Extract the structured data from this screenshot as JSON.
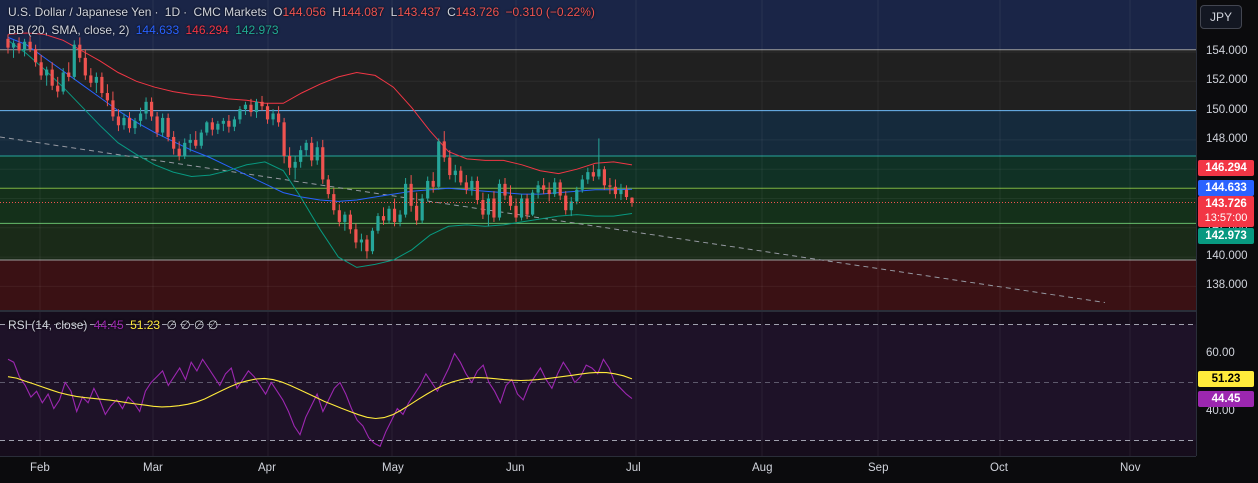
{
  "header": {
    "symbol": "U.S. Dollar / Japanese Yen",
    "interval": "1D",
    "source": "CMC Markets",
    "open_label": "O",
    "open": "144.056",
    "high_label": "H",
    "high": "144.087",
    "low_label": "L",
    "low": "143.437",
    "close_label": "C",
    "close": "143.726",
    "change": "−0.310 (−0.22%)"
  },
  "bb_indicator": {
    "label": "BB (20, SMA, close, 2)",
    "basis": "144.633",
    "upper": "146.294",
    "lower": "142.973"
  },
  "rsi_indicator": {
    "label": "RSI (14, close)",
    "rsi": "44.45",
    "rsi_ma": "51.23",
    "extra": "∅ ∅ ∅ ∅"
  },
  "currency_button": "JPY",
  "price_axis": {
    "ticks": [
      "154.000",
      "152.000",
      "150.000",
      "148.000",
      "146.000",
      "144.000",
      "142.000",
      "140.000",
      "138.000"
    ]
  },
  "price_tags": {
    "upper": "146.294",
    "middle": "144.633",
    "last": "143.726",
    "countdown": "13:57:00",
    "lower": "142.973"
  },
  "rsi_axis": {
    "ticks": [
      "60.00",
      "40.00"
    ],
    "tag_rsi": "44.45",
    "tag_ma": "51.23"
  },
  "time_axis": {
    "labels": [
      "Feb",
      "Mar",
      "Apr",
      "May",
      "Jun",
      "Jul",
      "Aug",
      "Sep",
      "Oct",
      "Nov"
    ]
  },
  "colors": {
    "up": "#26a69a",
    "down": "#ef5350",
    "bb_basis": "#2962ff",
    "bb_upper": "#f23645",
    "bb_lower": "#089981",
    "rsi": "#9c27b0",
    "rsi_ma": "#ffeb3b"
  },
  "chart_data": [
    {
      "type": "candlestick",
      "title": "U.S. Dollar / Japanese Yen · 1D · CMC Markets",
      "ylim": [
        136.8,
        155.5
      ],
      "y_ticks": [
        154,
        152,
        150,
        148,
        146,
        144,
        142,
        140,
        138
      ],
      "x_labels": [
        "Feb",
        "Mar",
        "Apr",
        "May",
        "Jun",
        "Jul",
        "Aug",
        "Sep",
        "Oct",
        "Nov"
      ],
      "horizontal_levels": [
        154.15,
        150.0,
        146.9,
        144.7,
        142.3,
        139.8
      ],
      "trendline": {
        "from": [
          "Jan",
          148.2
        ],
        "to": [
          "Oct",
          136.9
        ],
        "style": "dashed"
      },
      "ohlc": [
        [
          154.9,
          155.2,
          153.9,
          154.3
        ],
        [
          154.3,
          154.8,
          153.6,
          154.6
        ],
        [
          154.6,
          155.0,
          153.9,
          154.1
        ],
        [
          154.1,
          154.9,
          153.7,
          154.7
        ],
        [
          154.7,
          155.1,
          154.0,
          154.2
        ],
        [
          154.2,
          154.5,
          153.0,
          153.3
        ],
        [
          153.3,
          153.8,
          152.1,
          152.4
        ],
        [
          152.4,
          153.0,
          151.7,
          152.8
        ],
        [
          152.8,
          153.3,
          151.4,
          151.7
        ],
        [
          151.7,
          152.3,
          150.9,
          151.3
        ],
        [
          151.3,
          152.9,
          151.1,
          152.6
        ],
        [
          152.6,
          153.3,
          152.0,
          152.3
        ],
        [
          152.3,
          154.8,
          152.1,
          154.5
        ],
        [
          154.5,
          155.0,
          153.3,
          153.6
        ],
        [
          153.6,
          154.2,
          152.1,
          152.4
        ],
        [
          152.4,
          152.9,
          151.6,
          151.9
        ],
        [
          151.9,
          152.6,
          151.2,
          152.3
        ],
        [
          152.3,
          152.6,
          150.9,
          151.2
        ],
        [
          151.2,
          151.8,
          150.3,
          150.7
        ],
        [
          150.7,
          151.3,
          149.3,
          149.6
        ],
        [
          149.6,
          150.1,
          148.6,
          149.0
        ],
        [
          149.0,
          149.8,
          148.7,
          149.5
        ],
        [
          149.5,
          149.9,
          148.5,
          148.8
        ],
        [
          148.8,
          149.5,
          148.4,
          149.3
        ],
        [
          149.3,
          150.2,
          148.9,
          149.8
        ],
        [
          149.8,
          150.9,
          149.4,
          150.6
        ],
        [
          150.6,
          150.9,
          149.3,
          149.6
        ],
        [
          149.6,
          149.9,
          148.2,
          148.5
        ],
        [
          148.5,
          149.8,
          148.2,
          149.5
        ],
        [
          149.5,
          149.8,
          147.9,
          148.2
        ],
        [
          148.2,
          148.6,
          147.0,
          147.4
        ],
        [
          147.4,
          147.9,
          146.6,
          146.9
        ],
        [
          146.9,
          148.1,
          146.7,
          147.8
        ],
        [
          147.8,
          148.4,
          147.2,
          148.0
        ],
        [
          148.0,
          148.6,
          147.4,
          147.6
        ],
        [
          147.6,
          148.7,
          147.4,
          148.5
        ],
        [
          148.5,
          149.3,
          148.3,
          149.2
        ],
        [
          149.2,
          149.5,
          148.3,
          148.7
        ],
        [
          148.7,
          149.3,
          148.4,
          149.1
        ],
        [
          149.1,
          149.5,
          148.6,
          149.3
        ],
        [
          149.3,
          149.7,
          148.5,
          148.9
        ],
        [
          148.9,
          149.6,
          148.6,
          149.4
        ],
        [
          149.4,
          150.3,
          149.1,
          150.1
        ],
        [
          150.1,
          150.6,
          149.7,
          150.4
        ],
        [
          150.4,
          150.8,
          149.6,
          149.9
        ],
        [
          149.9,
          150.8,
          149.5,
          150.6
        ],
        [
          150.6,
          151.0,
          150.0,
          150.3
        ],
        [
          150.3,
          150.5,
          149.1,
          149.4
        ],
        [
          149.4,
          150.1,
          149.0,
          149.8
        ],
        [
          149.8,
          150.3,
          148.9,
          149.2
        ],
        [
          149.2,
          149.5,
          146.4,
          146.9
        ],
        [
          146.9,
          147.5,
          145.6,
          146.1
        ],
        [
          146.1,
          146.9,
          145.3,
          146.5
        ],
        [
          146.5,
          147.6,
          146.1,
          147.3
        ],
        [
          147.3,
          148.0,
          146.9,
          147.8
        ],
        [
          147.8,
          148.2,
          146.2,
          146.6
        ],
        [
          146.6,
          147.9,
          146.3,
          147.5
        ],
        [
          147.5,
          148.0,
          145.0,
          145.3
        ],
        [
          145.3,
          145.6,
          144.0,
          144.3
        ],
        [
          144.3,
          144.7,
          142.9,
          143.2
        ],
        [
          143.2,
          143.6,
          142.1,
          142.4
        ],
        [
          142.4,
          143.1,
          141.8,
          142.9
        ],
        [
          142.9,
          143.2,
          141.6,
          141.9
        ],
        [
          141.9,
          142.3,
          140.6,
          141.0
        ],
        [
          141.0,
          141.6,
          140.4,
          141.2
        ],
        [
          141.2,
          141.5,
          139.9,
          140.4
        ],
        [
          140.4,
          142.0,
          140.2,
          141.8
        ],
        [
          141.8,
          143.0,
          141.6,
          142.8
        ],
        [
          142.8,
          143.4,
          142.2,
          142.5
        ],
        [
          142.5,
          143.5,
          142.3,
          143.3
        ],
        [
          143.3,
          144.0,
          142.1,
          142.4
        ],
        [
          142.4,
          143.2,
          142.1,
          142.9
        ],
        [
          142.9,
          145.4,
          142.7,
          145.0
        ],
        [
          145.0,
          145.6,
          143.1,
          143.5
        ],
        [
          143.5,
          144.4,
          142.2,
          142.5
        ],
        [
          142.5,
          144.3,
          142.3,
          144.0
        ],
        [
          144.0,
          145.5,
          143.8,
          145.2
        ],
        [
          145.2,
          145.8,
          144.4,
          144.8
        ],
        [
          144.8,
          148.1,
          144.6,
          147.9
        ],
        [
          147.9,
          148.6,
          146.5,
          146.8
        ],
        [
          146.8,
          147.3,
          145.3,
          145.6
        ],
        [
          145.6,
          146.3,
          145.1,
          145.9
        ],
        [
          145.9,
          146.2,
          144.9,
          145.1
        ],
        [
          145.1,
          145.6,
          144.3,
          144.6
        ],
        [
          144.6,
          145.5,
          144.2,
          145.2
        ],
        [
          145.2,
          145.5,
          143.6,
          143.9
        ],
        [
          143.9,
          144.4,
          142.6,
          142.9
        ],
        [
          142.9,
          144.3,
          142.1,
          144.0
        ],
        [
          144.0,
          144.5,
          142.4,
          142.7
        ],
        [
          142.7,
          145.3,
          142.5,
          145.0
        ],
        [
          145.0,
          145.4,
          143.9,
          144.2
        ],
        [
          144.2,
          144.9,
          143.2,
          143.5
        ],
        [
          143.5,
          144.0,
          142.4,
          142.7
        ],
        [
          142.7,
          144.3,
          142.5,
          144.0
        ],
        [
          144.0,
          144.3,
          142.6,
          142.9
        ],
        [
          142.9,
          144.6,
          142.8,
          144.4
        ],
        [
          144.4,
          145.2,
          144.0,
          144.9
        ],
        [
          144.9,
          145.4,
          144.3,
          144.6
        ],
        [
          144.6,
          145.1,
          143.8,
          144.3
        ],
        [
          144.3,
          145.4,
          144.1,
          145.1
        ],
        [
          145.1,
          145.3,
          143.9,
          144.2
        ],
        [
          144.2,
          144.5,
          142.9,
          143.2
        ],
        [
          143.2,
          144.1,
          142.8,
          143.8
        ],
        [
          143.8,
          144.8,
          143.6,
          144.6
        ],
        [
          144.6,
          145.6,
          144.4,
          145.3
        ],
        [
          145.3,
          146.1,
          145.0,
          145.8
        ],
        [
          145.8,
          146.3,
          145.2,
          145.5
        ],
        [
          145.5,
          148.1,
          145.3,
          146.0
        ],
        [
          146.0,
          146.2,
          144.6,
          144.9
        ],
        [
          144.9,
          145.4,
          144.3,
          144.8
        ],
        [
          144.8,
          145.3,
          144.0,
          144.3
        ],
        [
          144.3,
          145.0,
          143.9,
          144.6
        ],
        [
          144.6,
          144.9,
          143.9,
          144.1
        ],
        [
          144.056,
          144.087,
          143.437,
          143.726
        ]
      ],
      "bb_basis": [
        155.0,
        154.5,
        153.6,
        152.7,
        151.8,
        150.9,
        150.0,
        149.2,
        148.5,
        147.9,
        147.3,
        146.8,
        146.2,
        145.6,
        145.0,
        144.4,
        144.1,
        143.9,
        143.8,
        143.9,
        144.1,
        144.3,
        144.5,
        144.6,
        144.7,
        144.6,
        144.5,
        144.4,
        144.3,
        144.3,
        144.4,
        144.5,
        144.6,
        144.6,
        144.63
      ],
      "bb_upper": [
        155.2,
        155.3,
        155.2,
        154.8,
        154.1,
        153.4,
        152.6,
        152.0,
        151.6,
        151.3,
        151.1,
        151.0,
        150.8,
        150.7,
        150.5,
        150.5,
        151.2,
        151.8,
        152.3,
        152.6,
        152.4,
        151.6,
        150.2,
        148.6,
        147.2,
        146.7,
        146.6,
        146.6,
        146.3,
        145.9,
        145.7,
        146.0,
        146.4,
        146.5,
        146.294
      ],
      "bb_lower": [
        154.8,
        153.9,
        152.8,
        151.6,
        150.3,
        149.0,
        147.8,
        147.0,
        146.3,
        145.8,
        145.5,
        145.6,
        145.9,
        146.3,
        146.5,
        145.9,
        144.0,
        141.9,
        140.0,
        139.3,
        139.5,
        139.8,
        140.5,
        141.5,
        142.1,
        142.2,
        142.1,
        142.2,
        142.4,
        142.6,
        142.8,
        142.9,
        142.8,
        142.8,
        142.973
      ]
    },
    {
      "type": "line",
      "title": "RSI (14, close)",
      "ylim": [
        20,
        80
      ],
      "y_ticks": [
        60,
        40
      ],
      "bands": [
        70,
        50,
        30
      ],
      "series": [
        {
          "name": "RSI",
          "values": [
            58,
            57,
            52,
            49,
            45,
            47,
            43,
            46,
            41,
            44,
            50,
            47,
            40,
            45,
            43,
            48,
            44,
            39,
            42,
            44,
            41,
            45,
            43,
            40,
            47,
            50,
            52,
            54,
            49,
            52,
            55,
            51,
            57,
            54,
            58,
            55,
            52,
            49,
            53,
            55,
            48,
            51,
            54,
            52,
            49,
            46,
            50,
            47,
            44,
            40,
            35,
            32,
            38,
            42,
            46,
            40,
            44,
            48,
            50,
            46,
            41,
            37,
            35,
            31,
            29,
            28,
            33,
            37,
            41,
            39,
            43,
            46,
            49,
            53,
            50,
            47,
            51,
            55,
            60,
            57,
            53,
            50,
            54,
            56,
            50,
            47,
            43,
            49,
            51,
            46,
            44,
            49,
            52,
            55,
            51,
            48,
            53,
            57,
            54,
            50,
            52,
            56,
            55,
            53,
            58,
            55,
            50,
            48,
            46,
            44.45
          ]
        },
        {
          "name": "RSI-based MA",
          "values": [
            52,
            51.5,
            50.5,
            49.5,
            48.5,
            47.5,
            46.5,
            45.8,
            45.2,
            44.8,
            44.5,
            44.2,
            43.9,
            43.5,
            43.0,
            42.6,
            42.2,
            41.8,
            41.6,
            41.7,
            42.0,
            42.5,
            43.2,
            44.3,
            45.8,
            47.2,
            48.6,
            49.8,
            50.6,
            51.2,
            51.4,
            51.0,
            50.2,
            49.0,
            47.7,
            46.3,
            44.9,
            43.5,
            42.3,
            41.1,
            40.0,
            38.9,
            38.0,
            37.6,
            37.9,
            38.9,
            40.5,
            42.3,
            44.2,
            46.0,
            47.7,
            49.1,
            50.2,
            51.0,
            51.5,
            51.7,
            51.6,
            51.3,
            51.0,
            50.8,
            50.7,
            50.8,
            51.0,
            51.3,
            51.7,
            52.1,
            52.5,
            52.9,
            53.3,
            53.5,
            53.4,
            53.0,
            52.3,
            51.23
          ]
        }
      ]
    }
  ]
}
